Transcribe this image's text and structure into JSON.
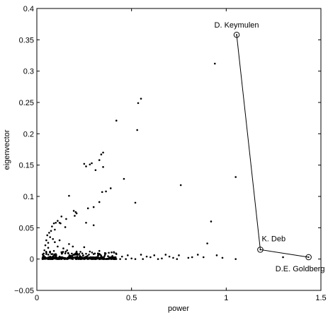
{
  "chart_data": {
    "type": "scatter",
    "xlabel": "power",
    "ylabel": "eigenvector",
    "xlim": [
      0,
      1.5
    ],
    "ylim": [
      -0.05,
      0.4
    ],
    "x_ticks": [
      0,
      0.5,
      1,
      1.5
    ],
    "x_tick_labels": [
      "0",
      "0.5",
      "1",
      "1.5"
    ],
    "y_ticks": [
      -0.05,
      0,
      0.05,
      0.1,
      0.15,
      0.2,
      0.25,
      0.3,
      0.35,
      0.4
    ],
    "y_tick_labels": [
      "−0.05",
      "0",
      "0.05",
      "0.1",
      "0.15",
      "0.2",
      "0.25",
      "0.3",
      "0.35",
      "0.4"
    ],
    "grid": false,
    "points": [
      [
        0.94,
        0.312
      ],
      [
        0.55,
        0.256
      ],
      [
        0.535,
        0.249
      ],
      [
        0.42,
        0.221
      ],
      [
        0.53,
        0.206
      ],
      [
        0.35,
        0.17
      ],
      [
        0.34,
        0.167
      ],
      [
        0.33,
        0.158
      ],
      [
        0.25,
        0.152
      ],
      [
        0.26,
        0.148
      ],
      [
        0.28,
        0.151
      ],
      [
        0.29,
        0.153
      ],
      [
        0.35,
        0.147
      ],
      [
        0.31,
        0.142
      ],
      [
        0.46,
        0.128
      ],
      [
        0.76,
        0.118
      ],
      [
        1.05,
        0.131
      ],
      [
        0.39,
        0.113
      ],
      [
        0.365,
        0.108
      ],
      [
        0.345,
        0.107
      ],
      [
        0.17,
        0.101
      ],
      [
        0.33,
        0.091
      ],
      [
        0.52,
        0.09
      ],
      [
        0.27,
        0.081
      ],
      [
        0.3,
        0.083
      ],
      [
        0.205,
        0.075
      ],
      [
        0.21,
        0.073
      ],
      [
        0.2,
        0.069
      ],
      [
        0.195,
        0.077
      ],
      [
        0.155,
        0.064
      ],
      [
        0.13,
        0.068
      ],
      [
        0.11,
        0.061
      ],
      [
        0.09,
        0.057
      ],
      [
        0.08,
        0.052
      ],
      [
        0.1,
        0.058
      ],
      [
        0.12,
        0.058
      ],
      [
        0.125,
        0.057
      ],
      [
        0.26,
        0.058
      ],
      [
        0.3,
        0.054
      ],
      [
        0.075,
        0.045
      ],
      [
        0.065,
        0.042
      ],
      [
        0.055,
        0.038
      ],
      [
        0.07,
        0.035
      ],
      [
        0.095,
        0.047
      ],
      [
        0.15,
        0.051
      ],
      [
        0.92,
        0.06
      ],
      [
        0.05,
        0.03
      ],
      [
        0.06,
        0.026
      ],
      [
        0.085,
        0.032
      ],
      [
        0.095,
        0.027
      ],
      [
        0.12,
        0.03
      ],
      [
        0.17,
        0.024
      ],
      [
        0.045,
        0.022
      ],
      [
        0.06,
        0.018
      ],
      [
        0.11,
        0.02
      ],
      [
        0.14,
        0.017
      ],
      [
        0.19,
        0.02
      ],
      [
        0.25,
        0.019
      ],
      [
        0.9,
        0.025
      ],
      [
        0.04,
        0.014
      ],
      [
        0.07,
        0.012
      ],
      [
        0.09,
        0.013
      ],
      [
        0.13,
        0.011
      ],
      [
        0.16,
        0.014
      ],
      [
        0.21,
        0.012
      ],
      [
        0.28,
        0.012
      ],
      [
        0.33,
        0.013
      ],
      [
        0.38,
        0.01
      ],
      [
        0.05,
        0.008
      ],
      [
        0.1,
        0.008
      ],
      [
        0.15,
        0.009
      ],
      [
        0.2,
        0.007
      ],
      [
        0.24,
        0.009
      ],
      [
        0.3,
        0.008
      ],
      [
        0.36,
        0.007
      ],
      [
        0.42,
        0.008
      ],
      [
        0.48,
        0.006
      ],
      [
        0.55,
        0.007
      ],
      [
        0.62,
        0.006
      ],
      [
        0.68,
        0.007
      ],
      [
        0.75,
        0.006
      ],
      [
        0.85,
        0.007
      ],
      [
        0.95,
        0.006
      ],
      [
        0.07,
        0.004
      ],
      [
        0.12,
        0.004
      ],
      [
        0.18,
        0.005
      ],
      [
        0.26,
        0.004
      ],
      [
        0.34,
        0.005
      ],
      [
        0.45,
        0.004
      ],
      [
        0.58,
        0.004
      ],
      [
        0.7,
        0.004
      ],
      [
        0.82,
        0.003
      ],
      [
        0.6,
        0.003
      ],
      [
        0.72,
        0.002
      ],
      [
        0.8,
        0.002
      ],
      [
        0.88,
        0.003
      ],
      [
        0.98,
        0.002
      ],
      [
        1.05,
        0.0
      ],
      [
        1.3,
        0.003
      ],
      [
        0.04,
        0.002
      ],
      [
        0.09,
        0.002
      ],
      [
        0.14,
        0.002
      ],
      [
        0.22,
        0.002
      ],
      [
        0.29,
        0.001
      ],
      [
        0.39,
        0.002
      ],
      [
        0.5,
        0.001
      ],
      [
        0.66,
        0.001
      ],
      [
        0.03,
        0.0
      ],
      [
        0.06,
        0.0
      ],
      [
        0.08,
        0.0
      ],
      [
        0.11,
        0.0
      ],
      [
        0.13,
        0.0
      ],
      [
        0.16,
        0.0
      ],
      [
        0.19,
        0.0
      ],
      [
        0.21,
        0.0
      ],
      [
        0.23,
        0.0
      ],
      [
        0.25,
        0.0
      ],
      [
        0.27,
        0.0
      ],
      [
        0.31,
        0.0
      ],
      [
        0.33,
        0.0
      ],
      [
        0.35,
        0.0
      ],
      [
        0.37,
        0.0
      ],
      [
        0.41,
        0.0
      ],
      [
        0.44,
        0.0
      ],
      [
        0.47,
        0.0
      ],
      [
        0.52,
        0.0
      ],
      [
        0.56,
        0.0
      ],
      [
        0.64,
        0.0
      ],
      [
        0.74,
        0.0
      ],
      [
        0.05,
        0.01
      ],
      [
        0.1,
        0.005
      ],
      [
        0.175,
        0.003
      ],
      [
        0.245,
        0.006
      ],
      [
        0.32,
        0.003
      ]
    ],
    "dense_band": {
      "x_range": [
        0.03,
        0.42
      ],
      "y": 0.0,
      "points_count": 400
    },
    "annotated_path": [
      {
        "label": "D. Keymulen",
        "x": 1.055,
        "y": 0.358
      },
      {
        "label": "K. Deb",
        "x": 1.18,
        "y": 0.015
      },
      {
        "label": "D.E. Goldberg",
        "x": 1.435,
        "y": 0.003
      }
    ]
  }
}
